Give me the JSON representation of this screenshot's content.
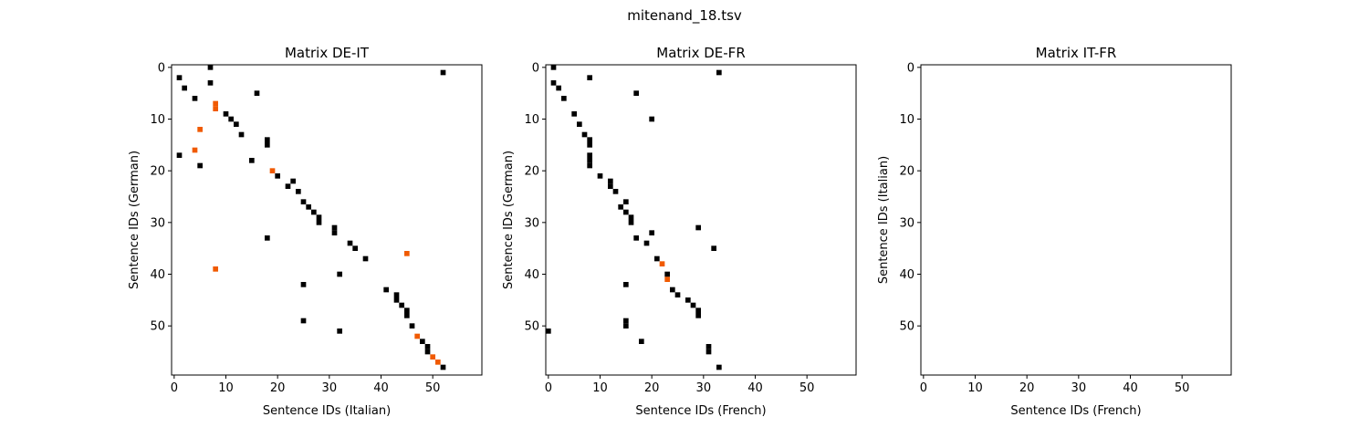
{
  "figure": {
    "title": "mitenand_18.tsv"
  },
  "colors": {
    "black": "#000000",
    "highlight": "#f05a00"
  },
  "chart_data": [
    {
      "type": "heatmap",
      "title": "Matrix DE-IT",
      "xlabel": "Sentence IDs (Italian)",
      "ylabel": "Sentence IDs (German)",
      "xlim": [
        -0.5,
        59.5
      ],
      "ylim": [
        59.5,
        -0.5
      ],
      "xticks": [
        0,
        10,
        20,
        30,
        40,
        50
      ],
      "yticks": [
        0,
        10,
        20,
        30,
        40,
        50
      ],
      "grid": false,
      "points": [
        [
          7,
          0
        ],
        [
          52,
          1
        ],
        [
          1,
          2
        ],
        [
          7,
          3
        ],
        [
          2,
          4
        ],
        [
          16,
          5
        ],
        [
          4,
          6
        ],
        [
          8,
          7
        ],
        [
          8,
          8
        ],
        [
          10,
          9
        ],
        [
          11,
          10
        ],
        [
          12,
          11
        ],
        [
          5,
          12
        ],
        [
          13,
          13
        ],
        [
          18,
          14
        ],
        [
          18,
          15
        ],
        [
          4,
          16
        ],
        [
          1,
          17
        ],
        [
          15,
          18
        ],
        [
          5,
          19
        ],
        [
          19,
          20
        ],
        [
          20,
          21
        ],
        [
          23,
          22
        ],
        [
          22,
          23
        ],
        [
          24,
          24
        ],
        [
          25,
          26
        ],
        [
          26,
          27
        ],
        [
          27,
          28
        ],
        [
          28,
          29
        ],
        [
          28,
          30
        ],
        [
          31,
          31
        ],
        [
          31,
          32
        ],
        [
          18,
          33
        ],
        [
          34,
          34
        ],
        [
          35,
          35
        ],
        [
          45,
          36
        ],
        [
          37,
          37
        ],
        [
          8,
          39
        ],
        [
          32,
          40
        ],
        [
          25,
          42
        ],
        [
          41,
          43
        ],
        [
          43,
          44
        ],
        [
          43,
          45
        ],
        [
          44,
          46
        ],
        [
          45,
          47
        ],
        [
          45,
          48
        ],
        [
          25,
          49
        ],
        [
          46,
          50
        ],
        [
          32,
          51
        ],
        [
          47,
          52
        ],
        [
          48,
          53
        ],
        [
          49,
          54
        ],
        [
          49,
          55
        ],
        [
          50,
          56
        ],
        [
          51,
          57
        ],
        [
          52,
          58
        ]
      ],
      "highlight_points": [
        [
          8,
          7
        ],
        [
          8,
          8
        ],
        [
          5,
          12
        ],
        [
          4,
          16
        ],
        [
          19,
          20
        ],
        [
          45,
          36
        ],
        [
          8,
          39
        ],
        [
          47,
          52
        ],
        [
          50,
          56
        ],
        [
          51,
          57
        ]
      ]
    },
    {
      "type": "heatmap",
      "title": "Matrix DE-FR",
      "xlabel": "Sentence IDs (French)",
      "ylabel": "Sentence IDs (German)",
      "xlim": [
        -0.5,
        59.5
      ],
      "ylim": [
        59.5,
        -0.5
      ],
      "xticks": [
        0,
        10,
        20,
        30,
        40,
        50
      ],
      "yticks": [
        0,
        10,
        20,
        30,
        40,
        50
      ],
      "grid": false,
      "points": [
        [
          1,
          0
        ],
        [
          33,
          1
        ],
        [
          8,
          2
        ],
        [
          1,
          3
        ],
        [
          2,
          4
        ],
        [
          17,
          5
        ],
        [
          3,
          6
        ],
        [
          5,
          9
        ],
        [
          20,
          10
        ],
        [
          6,
          11
        ],
        [
          7,
          13
        ],
        [
          8,
          14
        ],
        [
          8,
          15
        ],
        [
          8,
          17
        ],
        [
          8,
          18
        ],
        [
          8,
          19
        ],
        [
          10,
          21
        ],
        [
          12,
          22
        ],
        [
          12,
          23
        ],
        [
          13,
          24
        ],
        [
          15,
          26
        ],
        [
          14,
          27
        ],
        [
          15,
          28
        ],
        [
          16,
          29
        ],
        [
          16,
          30
        ],
        [
          29,
          31
        ],
        [
          20,
          32
        ],
        [
          17,
          33
        ],
        [
          19,
          34
        ],
        [
          32,
          35
        ],
        [
          21,
          37
        ],
        [
          22,
          38
        ],
        [
          23,
          40
        ],
        [
          23,
          41
        ],
        [
          15,
          42
        ],
        [
          24,
          43
        ],
        [
          25,
          44
        ],
        [
          27,
          45
        ],
        [
          28,
          46
        ],
        [
          29,
          47
        ],
        [
          29,
          48
        ],
        [
          15,
          49
        ],
        [
          15,
          50
        ],
        [
          0,
          51
        ],
        [
          18,
          53
        ],
        [
          31,
          54
        ],
        [
          31,
          55
        ],
        [
          33,
          58
        ]
      ],
      "highlight_points": [
        [
          22,
          38
        ],
        [
          23,
          41
        ]
      ]
    },
    {
      "type": "heatmap",
      "title": "Matrix IT-FR",
      "xlabel": "Sentence IDs (French)",
      "ylabel": "Sentence IDs (Italian)",
      "xlim": [
        -0.5,
        59.5
      ],
      "ylim": [
        59.5,
        -0.5
      ],
      "xticks": [
        0,
        10,
        20,
        30,
        40,
        50
      ],
      "yticks": [
        0,
        10,
        20,
        30,
        40,
        50
      ],
      "grid": false,
      "points": [],
      "highlight_points": []
    }
  ]
}
